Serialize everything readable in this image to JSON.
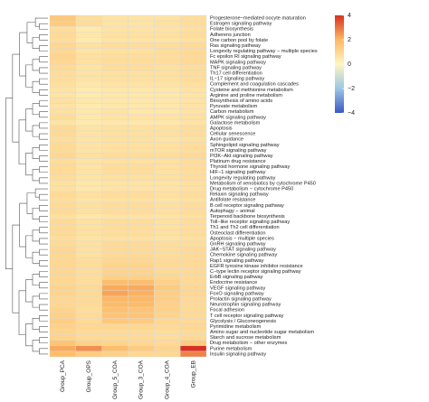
{
  "chart_data": {
    "type": "heatmap",
    "rows": [
      "Progesterone−mediated oocyte maturation",
      "Estrogen signaling pathway",
      "Folate biosynthesis",
      "Adherens junction",
      "One carbon pool by folate",
      "Ras signaling pathway",
      "Longevity regulating pathway − multiple species",
      "Fc epsilon RI signaling pathway",
      "MAPK signaling pathway",
      "TNF signaling pathway",
      "Th17 cell differentiation",
      "IL−17 signaling pathway",
      "Complement and coagulation cascades",
      "Cysteine and methionine metabolism",
      "Arginine and proline metabolism",
      "Biosynthesis of amino acids",
      "Pyruvate metabolism",
      "Carbon metabolism",
      "AMPK signaling pathway",
      "Galactose metabolism",
      "Apoptosis",
      "Cellular senescence",
      "Axon guidance",
      "Sphingolipid signaling pathway",
      "mTOR signaling pathway",
      "PI3K−Akt signaling pathway",
      "Platinum drug resistance",
      "Thyroid hormone signaling pathway",
      "HIF−1 signaling pathway",
      "Longevity regulating pathway",
      "Metabolism of xenobiotics by cytochrome P450",
      "Drug metabolism − cytochrome P450",
      "Relaxin signaling pathway",
      "Antifolate resistance",
      "B cell receptor signaling pathway",
      "Autophagy − animal",
      "Terpenoid backbone biosynthesis",
      "Toll−like receptor signaling pathway",
      "Th1 and Th2 cell differentiation",
      "Osteoclast differentiation",
      "Apoptosis − multiple species",
      "GnRH signaling pathway",
      "JAK−STAT signaling pathway",
      "Chemokine signaling pathway",
      "Rap1 signaling pathway",
      "EGFR tyrosine kinase inhibitor resistance",
      "C−type lectin receptor signaling pathway",
      "ErbB signaling pathway",
      "Endocrine resistance",
      "VEGF signaling pathway",
      "FoxO signaling pathway",
      "Prolactin signaling pathway",
      "Neurotrophin signaling pathway",
      "Focal adhesion",
      "T cell receptor signaling pathway",
      "Glycolysis / Gluconeogenesis",
      "Pyrimidine metabolism",
      "Amino sugar and nucleotide sugar metabolism",
      "Starch and sucrose metabolism",
      "Drug metabolism − other enzymes",
      "Purine metabolism",
      "Insulin signaling pathway"
    ],
    "columns": [
      "Group_PCA",
      "Group_OPS",
      "Group_5_COA",
      "Group_3_COA",
      "Group_4_COA",
      "Group_EB"
    ],
    "values": [
      [
        1.5,
        0.8,
        0.6,
        0.6,
        0.6,
        0.8
      ],
      [
        1.4,
        0.8,
        0.6,
        0.6,
        0.7,
        0.8
      ],
      [
        0.8,
        0.4,
        0.6,
        0.6,
        0.6,
        0.7
      ],
      [
        0.9,
        0.5,
        0.7,
        0.7,
        0.7,
        0.8
      ],
      [
        0.8,
        0.4,
        0.6,
        0.6,
        0.6,
        0.7
      ],
      [
        1.0,
        0.7,
        0.8,
        0.8,
        0.8,
        0.9
      ],
      [
        1.0,
        0.6,
        0.7,
        0.7,
        0.8,
        0.9
      ],
      [
        1.1,
        0.7,
        0.8,
        0.8,
        0.8,
        0.9
      ],
      [
        1.0,
        0.7,
        0.8,
        0.8,
        0.8,
        0.9
      ],
      [
        0.9,
        0.6,
        0.8,
        0.8,
        0.7,
        0.8
      ],
      [
        0.8,
        0.6,
        0.7,
        0.7,
        0.7,
        0.8
      ],
      [
        0.8,
        0.6,
        0.7,
        0.7,
        0.7,
        0.8
      ],
      [
        0.7,
        0.5,
        0.6,
        0.6,
        0.6,
        0.7
      ],
      [
        0.6,
        0.4,
        0.5,
        0.5,
        0.5,
        0.6
      ],
      [
        0.6,
        0.4,
        0.5,
        0.5,
        0.5,
        0.6
      ],
      [
        0.7,
        0.5,
        0.5,
        0.5,
        0.5,
        0.6
      ],
      [
        0.6,
        0.4,
        0.5,
        0.5,
        0.5,
        0.6
      ],
      [
        0.7,
        0.5,
        0.6,
        0.5,
        0.5,
        0.6
      ],
      [
        0.8,
        0.5,
        0.6,
        0.6,
        0.6,
        0.7
      ],
      [
        0.6,
        0.4,
        0.5,
        0.5,
        0.5,
        0.6
      ],
      [
        0.9,
        0.6,
        0.7,
        0.7,
        0.7,
        0.8
      ],
      [
        0.9,
        0.6,
        0.7,
        0.7,
        0.7,
        0.8
      ],
      [
        0.8,
        0.6,
        0.7,
        0.7,
        0.6,
        0.7
      ],
      [
        0.9,
        0.6,
        0.7,
        0.7,
        0.7,
        0.8
      ],
      [
        0.9,
        0.6,
        0.7,
        0.7,
        0.7,
        0.8
      ],
      [
        1.0,
        0.7,
        0.8,
        0.8,
        0.8,
        0.9
      ],
      [
        0.8,
        0.6,
        0.7,
        0.7,
        0.7,
        0.8
      ],
      [
        0.9,
        0.6,
        0.8,
        0.8,
        0.7,
        0.8
      ],
      [
        0.9,
        0.6,
        0.8,
        0.8,
        0.7,
        0.8
      ],
      [
        0.8,
        0.6,
        0.7,
        0.7,
        0.7,
        0.8
      ],
      [
        0.7,
        0.5,
        0.6,
        0.6,
        0.6,
        0.7
      ],
      [
        0.7,
        0.5,
        0.6,
        0.6,
        0.6,
        0.7
      ],
      [
        0.9,
        0.7,
        0.8,
        0.8,
        0.7,
        0.8
      ],
      [
        0.8,
        0.6,
        0.7,
        0.7,
        0.6,
        0.7
      ],
      [
        0.9,
        0.7,
        0.8,
        0.8,
        0.7,
        0.8
      ],
      [
        0.9,
        0.7,
        0.8,
        0.8,
        0.7,
        0.8
      ],
      [
        0.7,
        0.5,
        0.6,
        0.6,
        0.6,
        0.7
      ],
      [
        0.9,
        0.7,
        0.8,
        0.8,
        0.7,
        0.8
      ],
      [
        0.9,
        0.7,
        0.8,
        0.8,
        0.7,
        0.8
      ],
      [
        0.9,
        0.7,
        0.8,
        0.8,
        0.7,
        0.8
      ],
      [
        0.8,
        0.6,
        0.7,
        0.7,
        0.6,
        0.7
      ],
      [
        0.9,
        0.7,
        0.9,
        0.9,
        0.8,
        0.8
      ],
      [
        1.0,
        0.7,
        0.9,
        0.9,
        0.8,
        0.9
      ],
      [
        1.0,
        0.7,
        0.9,
        0.9,
        0.8,
        0.9
      ],
      [
        1.0,
        0.8,
        1.0,
        1.0,
        0.9,
        0.9
      ],
      [
        1.0,
        0.8,
        1.1,
        1.1,
        0.9,
        0.9
      ],
      [
        1.0,
        0.8,
        1.1,
        1.1,
        0.9,
        0.9
      ],
      [
        1.0,
        0.8,
        1.2,
        1.2,
        1.0,
        0.9
      ],
      [
        1.0,
        0.8,
        1.8,
        1.8,
        1.2,
        0.9
      ],
      [
        1.1,
        0.9,
        2.2,
        2.2,
        1.4,
        1.0
      ],
      [
        1.1,
        0.9,
        2.3,
        2.1,
        1.3,
        1.0
      ],
      [
        1.0,
        0.9,
        2.0,
        2.0,
        1.3,
        0.9
      ],
      [
        1.0,
        0.9,
        1.9,
        1.9,
        1.2,
        0.9
      ],
      [
        1.1,
        0.8,
        1.7,
        1.6,
        1.2,
        0.9
      ],
      [
        1.2,
        0.9,
        1.6,
        1.6,
        1.1,
        0.9
      ],
      [
        1.3,
        0.9,
        1.5,
        1.4,
        1.0,
        0.9
      ],
      [
        1.2,
        1.0,
        1.0,
        1.0,
        0.9,
        1.0
      ],
      [
        1.1,
        0.9,
        0.9,
        0.9,
        0.8,
        0.9
      ],
      [
        1.1,
        0.9,
        0.9,
        0.9,
        0.8,
        0.9
      ],
      [
        1.6,
        1.2,
        1.1,
        1.0,
        0.9,
        1.4
      ],
      [
        2.2,
        2.6,
        1.8,
        1.4,
        1.1,
        4.0
      ],
      [
        1.8,
        1.4,
        1.2,
        1.0,
        1.0,
        2.8
      ]
    ],
    "zlim": [
      -4,
      4
    ],
    "zticks": [
      4,
      2,
      0,
      {
        "value": -2,
        "label": "−2"
      },
      {
        "value": -4,
        "label": "−4"
      }
    ],
    "colors": [
      "#3b58c4",
      "#9cc7e4",
      "#fff6c0",
      "#fdb863",
      "#d7301f"
    ]
  }
}
